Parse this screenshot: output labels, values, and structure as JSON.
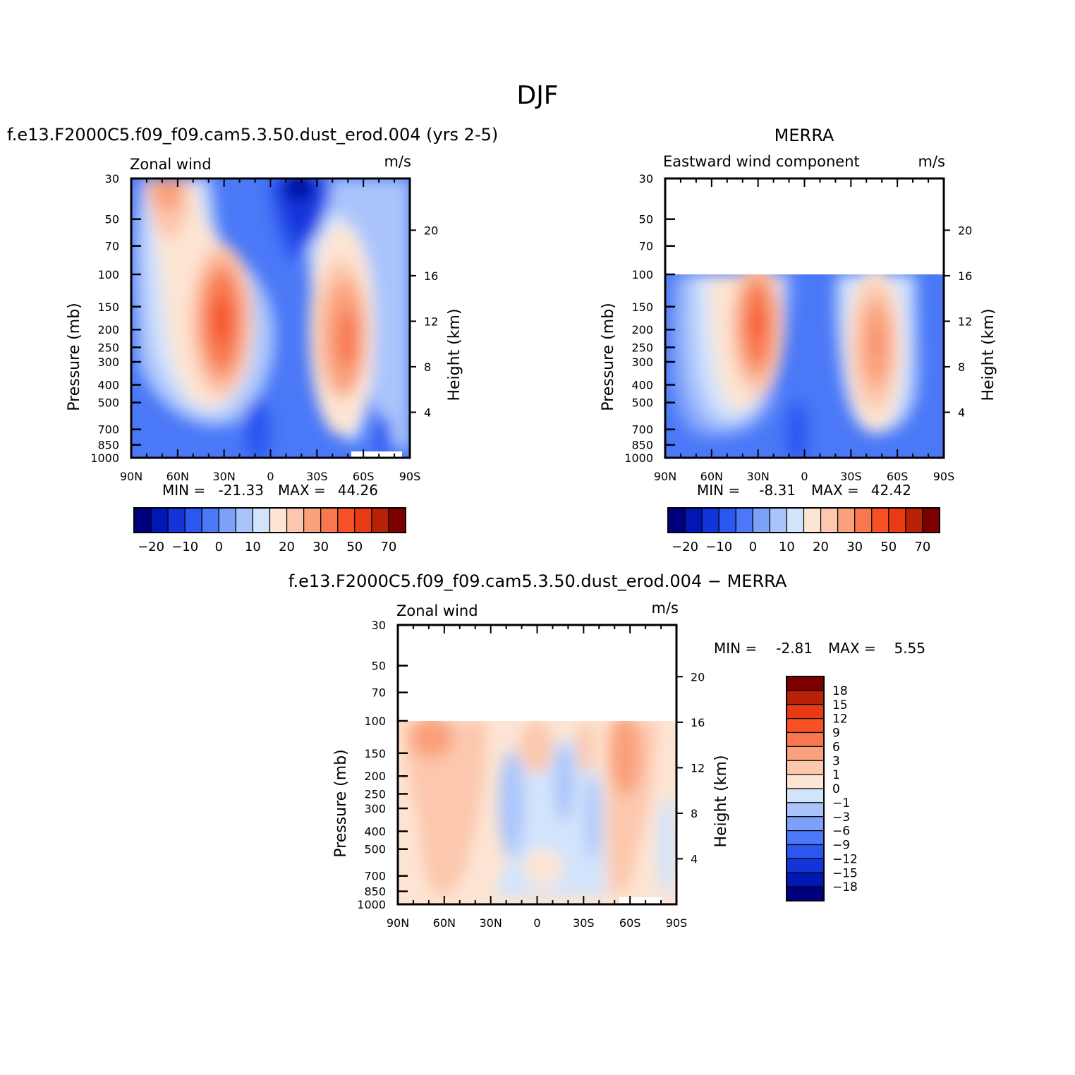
{
  "figure": {
    "title": "DJF",
    "colors": {
      "main_palette": [
        "#00007f",
        "#0017b3",
        "#1234d9",
        "#2b56f0",
        "#4a78f7",
        "#7da0f9",
        "#aac4fb",
        "#d2e4fc",
        "#fde5d3",
        "#fcc7ad",
        "#f9a07c",
        "#f8774f",
        "#f65125",
        "#e83b14",
        "#b62108",
        "#7d0000"
      ],
      "diff_palette": [
        "#00007f",
        "#0017b3",
        "#1234d9",
        "#2b56f0",
        "#4a78f7",
        "#7da0f9",
        "#aac4fb",
        "#d2e4fc",
        "#fde5d3",
        "#fcc7ad",
        "#f9a07c",
        "#f8774f",
        "#f65125",
        "#e83b14",
        "#b62108",
        "#7d0000"
      ]
    }
  },
  "common_axes": {
    "pressure_label": "Pressure (mb)",
    "height_label": "Height (km)",
    "pressure_ticks": [
      "30",
      "50",
      "70",
      "100",
      "150",
      "200",
      "250",
      "300",
      "400",
      "500",
      "700",
      "850",
      "1000"
    ],
    "height_ticks": [
      "20",
      "16",
      "12",
      "8",
      "4"
    ],
    "lat_ticks": [
      "90N",
      "60N",
      "30N",
      "0",
      "30S",
      "60S",
      "90S"
    ]
  },
  "chart_data": [
    {
      "type": "heatmap",
      "subtitle": "f.e13.F2000C5.f09_f09.cam5.3.50.dust_erod.004 (yrs 2-5)",
      "left_label": "Zonal wind",
      "units": "m/s",
      "min_label": "MIN =",
      "min_value": "-21.33",
      "max_label": "MAX =",
      "max_value": "44.26",
      "x_axis": "latitude",
      "x_range": [
        "90N",
        "90S"
      ],
      "y_axis": "pressure (mb)",
      "ylim": [
        1000,
        30
      ],
      "y_scale": "log",
      "colorbar_ticks": [
        "-20",
        "-10",
        "0",
        "10",
        "20",
        "30",
        "50",
        "70"
      ],
      "features": [
        {
          "name": "northern subtropical jet",
          "lat": "30N",
          "pressure_mb": 200,
          "max_ms": 44
        },
        {
          "name": "northern stratospheric westerlies",
          "lat": "60N",
          "pressure_mb": 30,
          "approx_ms": 30
        },
        {
          "name": "southern jet",
          "lat": "50S",
          "pressure_mb": 250,
          "approx_ms": 35
        },
        {
          "name": "equatorial easterlies",
          "lat": "15S",
          "pressure_mb": 30,
          "min_ms": -21
        }
      ]
    },
    {
      "type": "heatmap",
      "subtitle": "MERRA",
      "left_label": "Eastward wind component",
      "units": "m/s",
      "min_label": "MIN =",
      "min_value": "-8.31",
      "max_label": "MAX =",
      "max_value": "42.42",
      "x_axis": "latitude",
      "x_range": [
        "90N",
        "90S"
      ],
      "y_axis": "pressure (mb)",
      "ylim": [
        1000,
        30
      ],
      "y_scale": "log",
      "data_top_mb": 100,
      "colorbar_ticks": [
        "-20",
        "-10",
        "0",
        "10",
        "20",
        "30",
        "50",
        "70"
      ],
      "features": [
        {
          "name": "northern subtropical jet",
          "lat": "30N",
          "pressure_mb": 200,
          "max_ms": 42
        },
        {
          "name": "southern jet",
          "lat": "48S",
          "pressure_mb": 250,
          "approx_ms": 33
        }
      ]
    },
    {
      "type": "heatmap",
      "subtitle": "f.e13.F2000C5.f09_f09.cam5.3.50.dust_erod.004 − MERRA",
      "left_label": "Zonal wind",
      "units": "m/s",
      "min_label": "MIN =",
      "min_value": "-2.81",
      "max_label": "MAX =",
      "max_value": "5.55",
      "x_axis": "latitude",
      "x_range": [
        "90N",
        "90S"
      ],
      "y_axis": "pressure (mb)",
      "ylim": [
        1000,
        30
      ],
      "y_scale": "log",
      "data_top_mb": 100,
      "colorbar_ticks": [
        "18",
        "15",
        "12",
        "9",
        "6",
        "3",
        "1",
        "0",
        "−1",
        "−3",
        "−6",
        "−9",
        "−12",
        "−15",
        "−18"
      ]
    }
  ]
}
